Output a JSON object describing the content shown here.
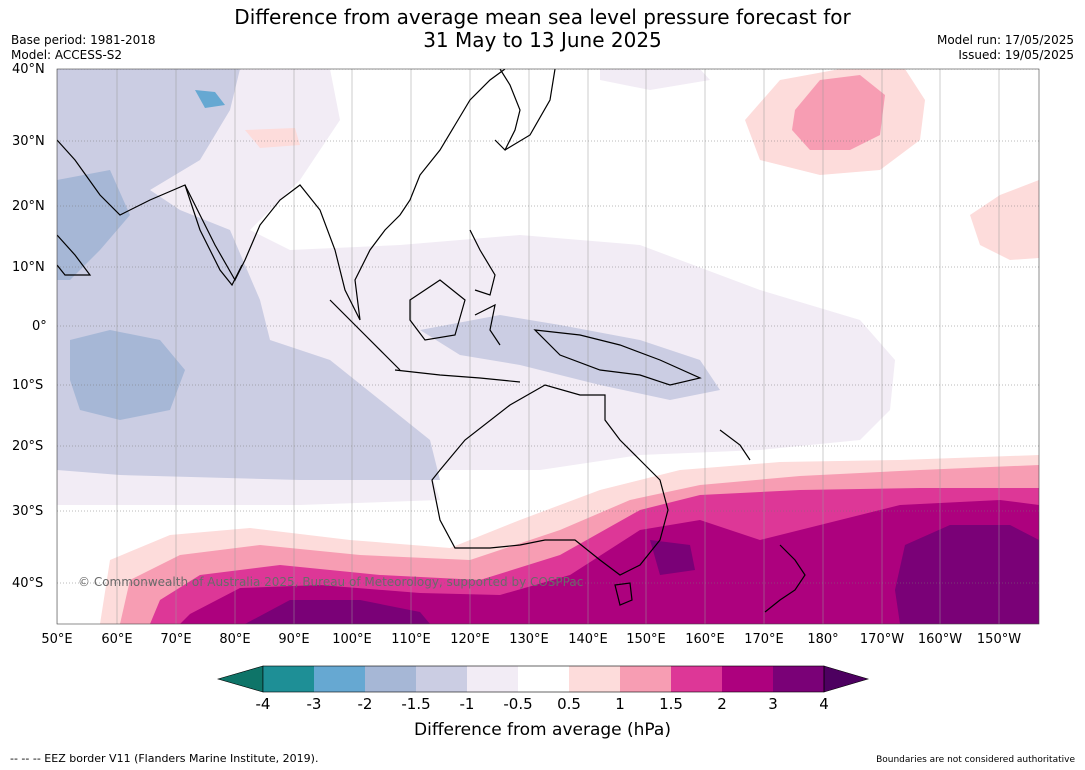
{
  "header": {
    "title_line1": "Difference from average mean sea level pressure forecast for",
    "title_line2": "31 May to 13 June 2025",
    "base_period": "Base period: 1981-2018",
    "model": "Model: ACCESS-S2",
    "model_run": "Model run: 17/05/2025",
    "issued": "Issued: 19/05/2025"
  },
  "map": {
    "lat_labels": [
      "40°N",
      "30°N",
      "20°N",
      "10°N",
      "0°",
      "10°S",
      "20°S",
      "30°S",
      "40°S"
    ],
    "lon_labels": [
      "50°E",
      "60°E",
      "70°E",
      "80°E",
      "90°E",
      "100°E",
      "110°E",
      "120°E",
      "130°E",
      "140°E",
      "150°E",
      "160°E",
      "170°E",
      "180°",
      "170°W",
      "160°W",
      "150°W"
    ],
    "copyright": "© Commonwealth of Australia 2025, Bureau of Meteorology, supported by COSPPac"
  },
  "colorbar": {
    "ticks": [
      "-4",
      "-3",
      "-2",
      "-1.5",
      "-1",
      "-0.5",
      "0.5",
      "1",
      "1.5",
      "2",
      "3",
      "4"
    ],
    "colors": [
      "#0e7468",
      "#1e8f96",
      "#66a8d2",
      "#a6b7d6",
      "#cbcde3",
      "#f2ecf5",
      "#ffffff",
      "#fddcdb",
      "#f79db3",
      "#dd3797",
      "#ad017e",
      "#7a0177",
      "#4d0060"
    ],
    "label": "Difference from average (hPa)"
  },
  "footer": {
    "eez": "--  --  -- EEZ border V11 (Flanders Marine Institute, 2019).",
    "boundaries": "Boundaries are not considered authoritative"
  }
}
